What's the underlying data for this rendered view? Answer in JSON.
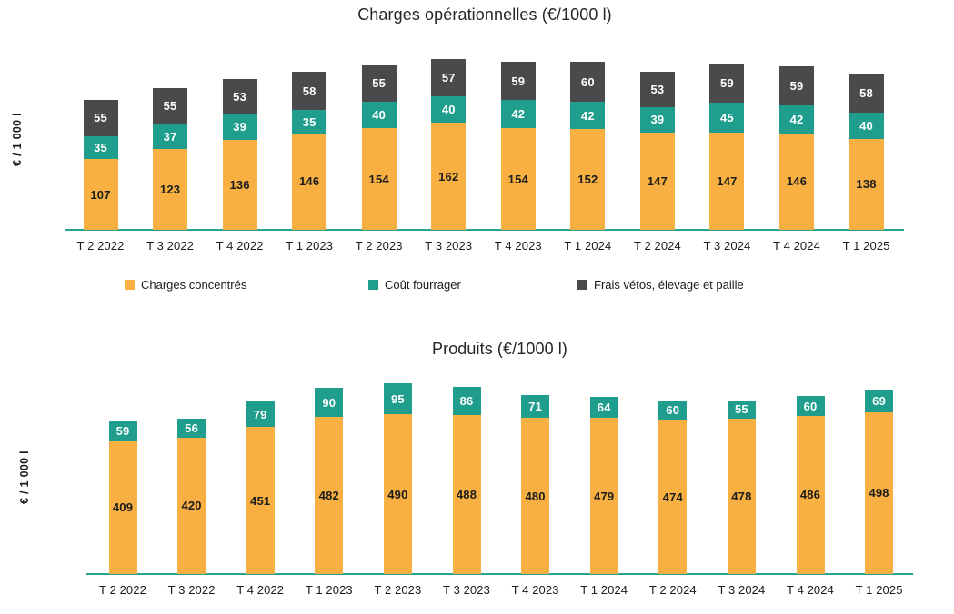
{
  "colors": {
    "orange": "#F7B041",
    "teal": "#1F9D8D",
    "dark_gray": "#4A4A4C",
    "axis_line": "#2AA095",
    "label_dark": "#1C1C1C",
    "label_light": "#FFFFFF",
    "title_color": "#262626"
  },
  "chart_data": [
    {
      "type": "bar",
      "stacked": true,
      "title": "Charges opérationnelles (€/1000 l)",
      "ylabel": "€ / 1 000 l",
      "grid": false,
      "legend_position": "bottom",
      "ylim": [
        0,
        275
      ],
      "categories": [
        "T 2 2022",
        "T 3 2022",
        "T 4 2022",
        "T 1 2023",
        "T 2 2023",
        "T 3 2023",
        "T 4 2023",
        "T 1 2024",
        "T 2 2024",
        "T 3 2024",
        "T 4 2024",
        "T 1 2025"
      ],
      "series": [
        {
          "name": "Charges concentrés",
          "color": "#F7B041",
          "label_color": "#1C1C1C",
          "values": [
            107,
            123,
            136,
            146,
            154,
            162,
            154,
            152,
            147,
            147,
            146,
            138
          ]
        },
        {
          "name": "Coût fourrager",
          "color": "#1F9D8D",
          "label_color": "#FFFFFF",
          "values": [
            35,
            37,
            39,
            35,
            40,
            40,
            42,
            42,
            39,
            45,
            42,
            40
          ]
        },
        {
          "name": "Frais vétos, élevage et paille",
          "color": "#4A4A4C",
          "label_color": "#FFFFFF",
          "values": [
            55,
            55,
            53,
            58,
            55,
            57,
            59,
            60,
            53,
            59,
            59,
            58
          ]
        }
      ]
    },
    {
      "type": "bar",
      "stacked": true,
      "title": "Produits (€/1000 l)",
      "ylabel": "€ / 1 000 l",
      "grid": false,
      "legend_position": "none",
      "ylim": [
        0,
        600
      ],
      "categories": [
        "T 2 2022",
        "T 3 2022",
        "T 4 2022",
        "T 1 2023",
        "T 2 2023",
        "T 3 2023",
        "T 4 2023",
        "T 1 2024",
        "T 2 2024",
        "T 3 2024",
        "T 4 2024",
        "T 1 2025"
      ],
      "series": [
        {
          "name": "",
          "color": "#F7B041",
          "label_color": "#1C1C1C",
          "values": [
            409,
            420,
            451,
            482,
            490,
            488,
            480,
            479,
            474,
            478,
            486,
            498
          ]
        },
        {
          "name": "",
          "color": "#1F9D8D",
          "label_color": "#FFFFFF",
          "values": [
            59,
            56,
            79,
            90,
            95,
            86,
            71,
            64,
            60,
            55,
            60,
            69
          ]
        }
      ]
    }
  ]
}
